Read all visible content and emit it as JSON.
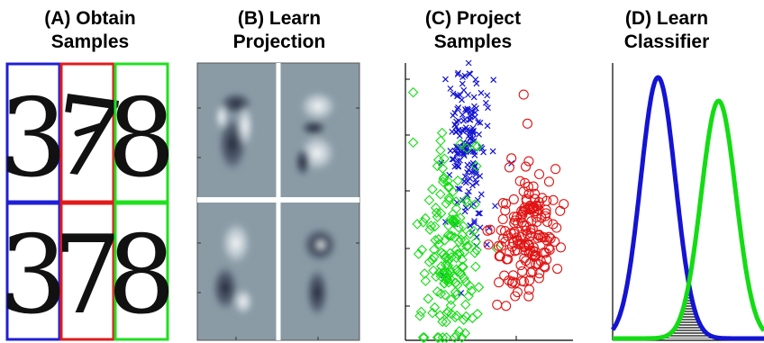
{
  "panels": [
    {
      "id": "A",
      "title_line1": "(A) Obtain",
      "title_line2": "Samples"
    },
    {
      "id": "B",
      "title_line1": "(B) Learn",
      "title_line2": "Projection"
    },
    {
      "id": "C",
      "title_line1": "(C) Project",
      "title_line2": "Samples"
    },
    {
      "id": "D",
      "title_line1": "(D) Learn",
      "title_line2": "Classifier"
    }
  ],
  "digit_samples": [
    {
      "digit": "3",
      "class_color": "#1f1fd6"
    },
    {
      "digit": "7",
      "class_color": "#e01b1b"
    },
    {
      "digit": "8",
      "class_color": "#1fe01f"
    },
    {
      "digit": "3",
      "class_color": "#1f1fd6"
    },
    {
      "digit": "7",
      "class_color": "#e01b1b"
    },
    {
      "digit": "8",
      "class_color": "#1fe01f"
    }
  ],
  "colors": {
    "class_3": "#1414d2",
    "class_7": "#e01414",
    "class_8": "#14dc14",
    "projection_bg": "#8a9ba6"
  },
  "chart_data": [
    {
      "type": "scatter",
      "title": "(C) Project Samples",
      "series": [
        {
          "marker": "x",
          "color": "#1414d2",
          "cluster_center": [
            0.35,
            0.3
          ],
          "count": 170
        },
        {
          "marker": "diamond",
          "color": "#14dc14",
          "cluster_center": [
            0.25,
            0.7
          ],
          "count": 170
        },
        {
          "marker": "circle",
          "color": "#e01414",
          "cluster_center": [
            0.72,
            0.6
          ],
          "count": 170
        }
      ],
      "grid": false
    },
    {
      "type": "line",
      "title": "(D) Learn Classifier",
      "series": [
        {
          "color": "#1414d2",
          "distribution": "gaussian",
          "mean": 0.3,
          "sd": 0.115
        },
        {
          "color": "#14dc14",
          "distribution": "gaussian",
          "mean": 0.7,
          "sd": 0.115
        }
      ],
      "overlap_fill": "hatched black"
    }
  ]
}
